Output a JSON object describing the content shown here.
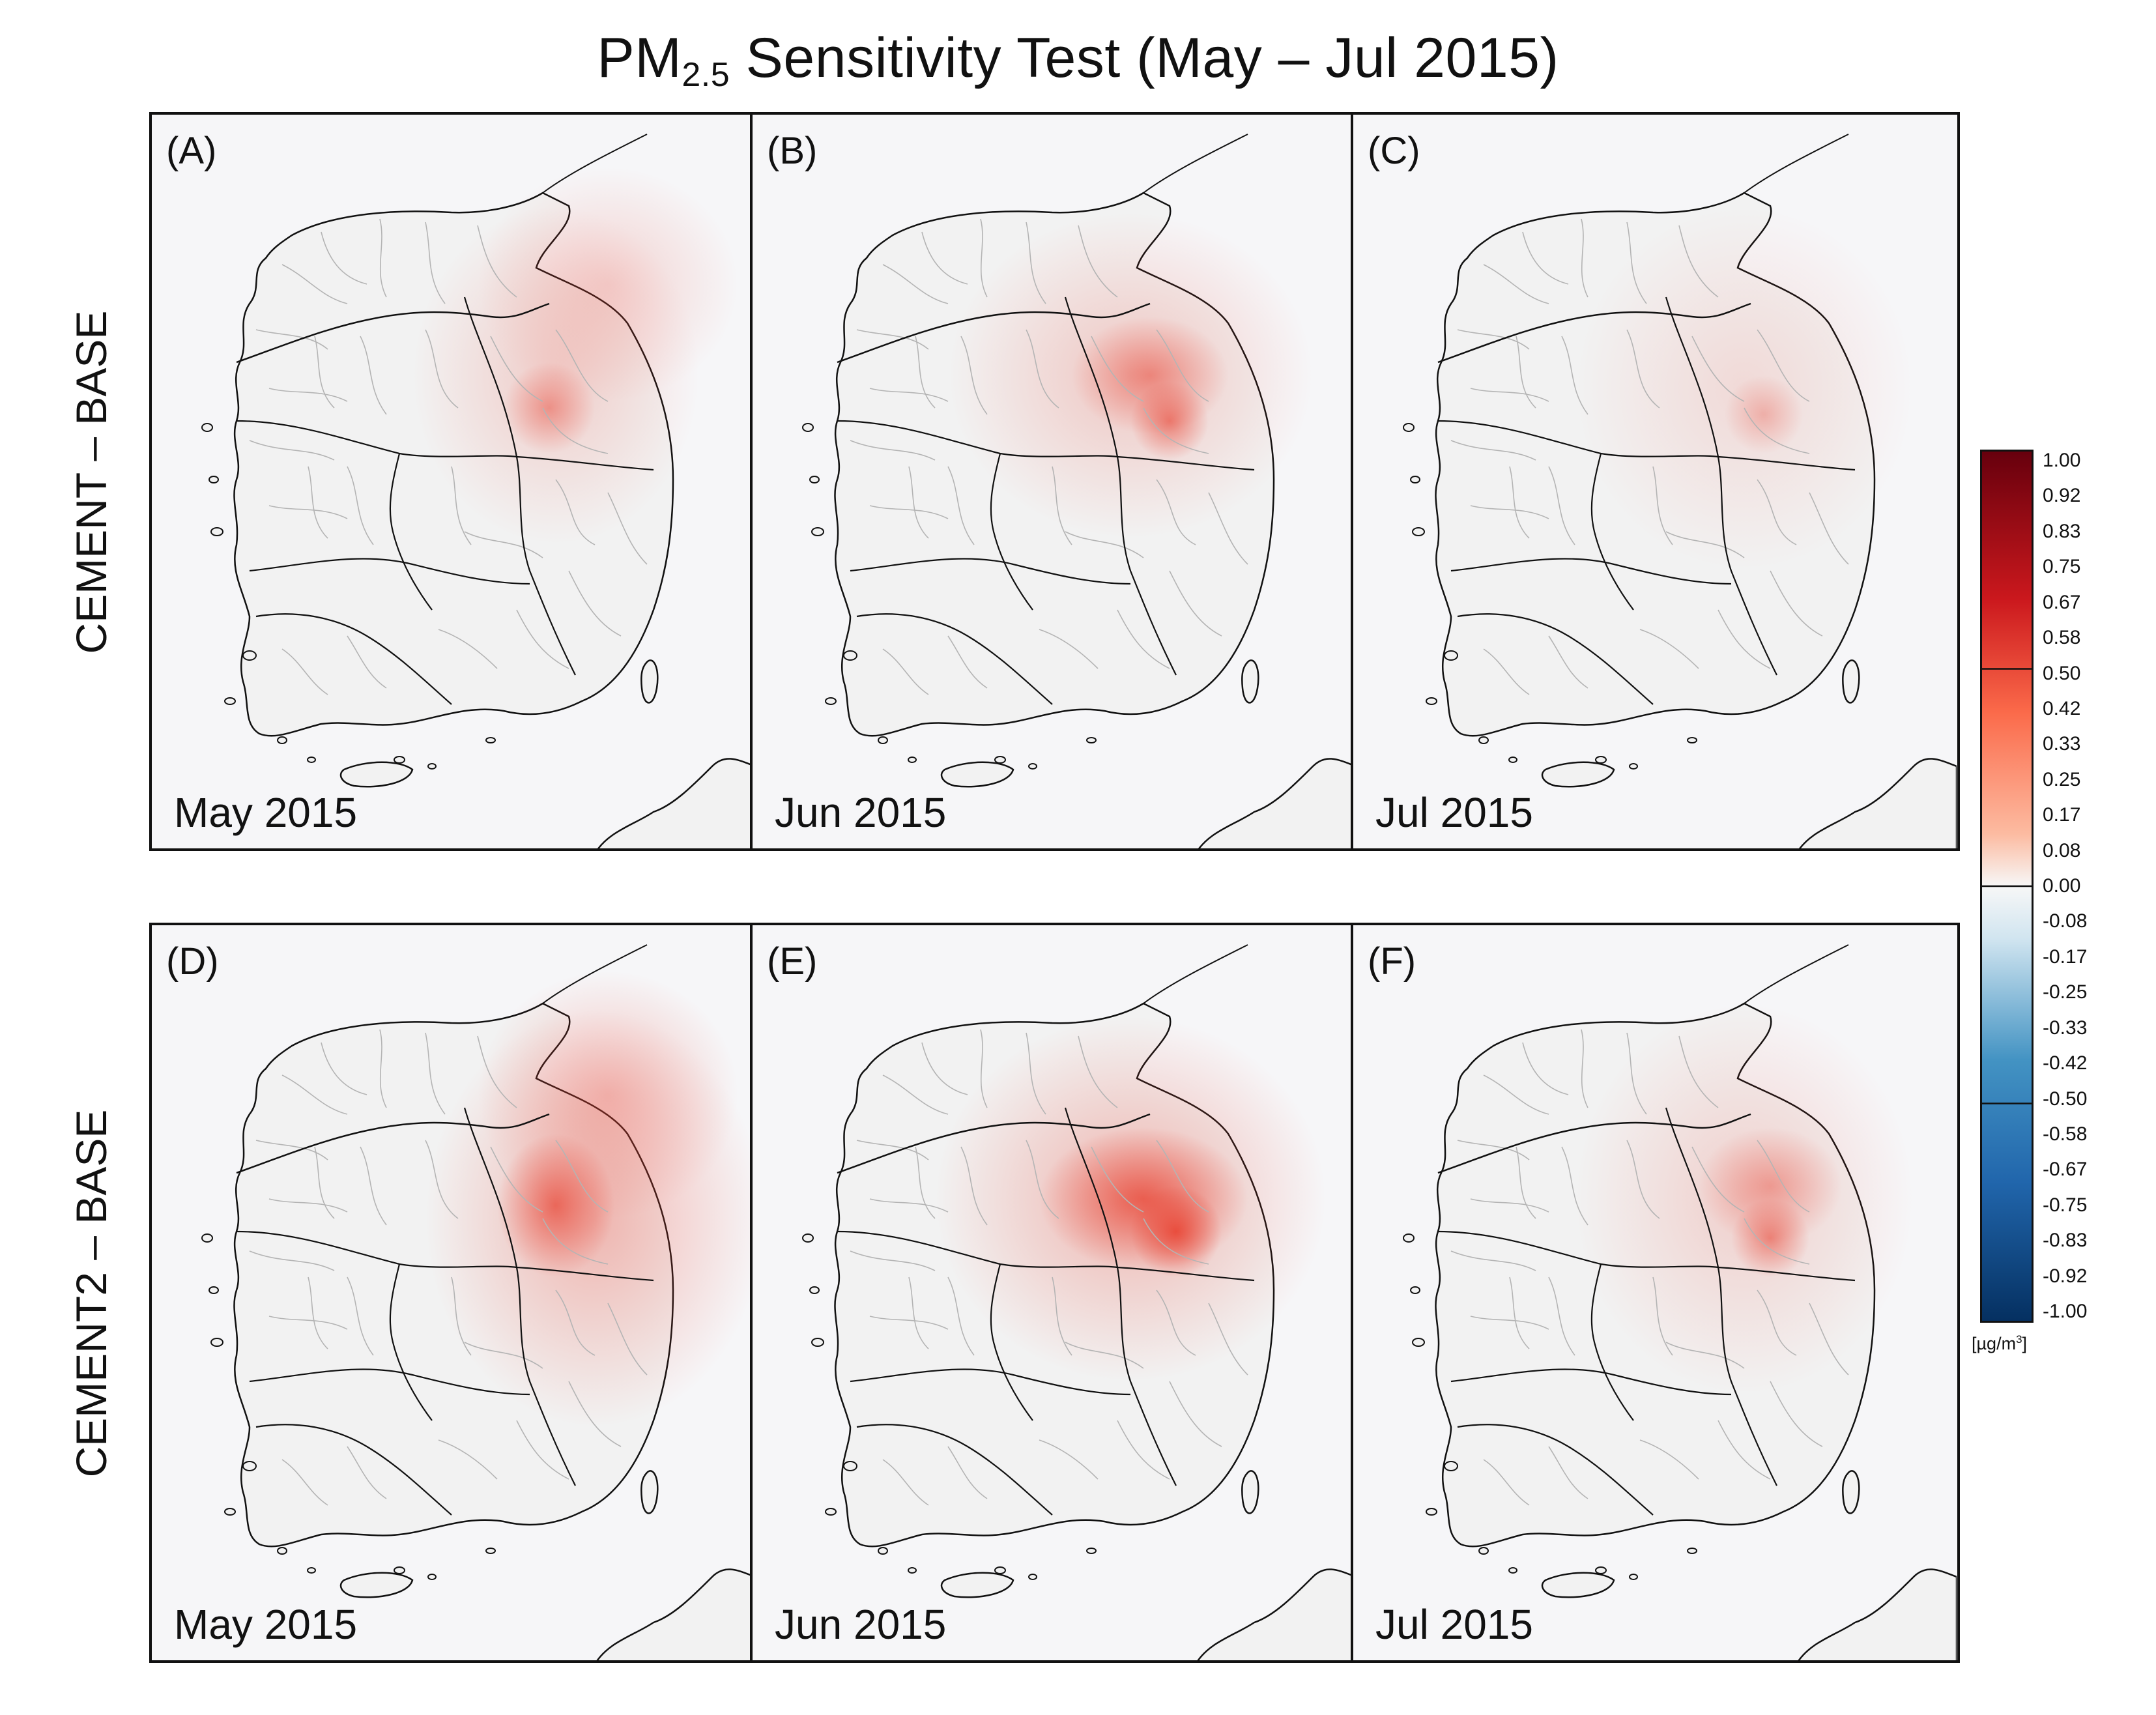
{
  "title": {
    "main": "PM",
    "subscript": "2.5",
    "rest": " Sensitivity Test (May – Jul 2015)"
  },
  "row_labels": [
    "CEMENT – BASE",
    "CEMENT2 – BASE"
  ],
  "panels": [
    {
      "letter": "(A)",
      "date": "May 2015"
    },
    {
      "letter": "(B)",
      "date": "Jun 2015"
    },
    {
      "letter": "(C)",
      "date": "Jul 2015"
    },
    {
      "letter": "(D)",
      "date": "May 2015"
    },
    {
      "letter": "(E)",
      "date": "Jun 2015"
    },
    {
      "letter": "(F)",
      "date": "Jul 2015"
    }
  ],
  "colorbar": {
    "ticks": [
      "1.00",
      "0.92",
      "0.83",
      "0.75",
      "0.67",
      "0.58",
      "0.50",
      "0.42",
      "0.33",
      "0.25",
      "0.17",
      "0.08",
      "0.00",
      "-0.08",
      "-0.17",
      "-0.25",
      "-0.33",
      "-0.42",
      "-0.50",
      "-0.58",
      "-0.67",
      "-0.75",
      "-0.83",
      "-0.92",
      "-1.00"
    ],
    "units_prefix": "[µg/m",
    "units_sup": "3",
    "units_suffix": "]",
    "colors": {
      "max": "#67000d",
      "high": "#cb181d",
      "mid": "#fb6a4a",
      "low": "#fcbba1",
      "zero": "#f7f7f7",
      "neg_low": "#d1e5f0",
      "neg_mid": "#4393c3",
      "neg_high": "#2166ac",
      "min": "#053061"
    }
  },
  "map_colors": {
    "sea": "#f6f6f8",
    "land": "#f2f2f2",
    "coast": "#111111",
    "district": "#b4b4b4"
  }
}
